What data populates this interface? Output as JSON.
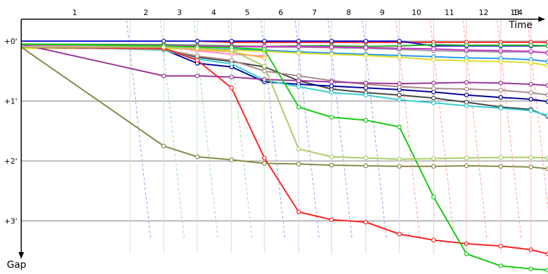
{
  "chart_data": {
    "type": "line",
    "xlabel": "Time",
    "ylabel": "Gap",
    "x_ticks": [
      "1",
      "2",
      "3",
      "4",
      "5",
      "6",
      "7",
      "8",
      "9",
      "10",
      "11",
      "12",
      "13",
      "14"
    ],
    "y_ticks": [
      "+0'",
      "+1'",
      "+2'",
      "+3'"
    ],
    "y_range_minutes": [
      -0.35,
      3.8
    ],
    "grid": true,
    "series": [
      {
        "color": "#ff2020",
        "points": [
          [
            0,
            0
          ],
          [
            2,
            0
          ],
          [
            3,
            0
          ],
          [
            4,
            0.02
          ],
          [
            5,
            0.02
          ],
          [
            6,
            0.02
          ],
          [
            7,
            0.02
          ],
          [
            8,
            0.02
          ],
          [
            9,
            0.02
          ],
          [
            10,
            0.02
          ],
          [
            11,
            0.02
          ],
          [
            12,
            0.02
          ],
          [
            13,
            0.02
          ],
          [
            14,
            0.02
          ]
        ]
      },
      {
        "color": "#1515d0",
        "points": [
          [
            0,
            0
          ],
          [
            2,
            0
          ],
          [
            3,
            0
          ],
          [
            4,
            0
          ],
          [
            5,
            0
          ],
          [
            6,
            0
          ],
          [
            7,
            0
          ],
          [
            8,
            0
          ],
          [
            9,
            0
          ],
          [
            10,
            0.08
          ],
          [
            11,
            0.08
          ],
          [
            12,
            0.08
          ],
          [
            13,
            0.08
          ],
          [
            14,
            0.08
          ]
        ]
      },
      {
        "color": "#22aa22",
        "points": [
          [
            0,
            0.05
          ],
          [
            2,
            0.06
          ],
          [
            3,
            0.07
          ],
          [
            4,
            0.08
          ],
          [
            5,
            0.09
          ],
          [
            6,
            0.08
          ],
          [
            7,
            0.08
          ],
          [
            8,
            0.09
          ],
          [
            9,
            0.08
          ],
          [
            10,
            0.06
          ],
          [
            11,
            0.07
          ],
          [
            12,
            0.07
          ],
          [
            13,
            0.07
          ],
          [
            14,
            0.08
          ]
        ]
      },
      {
        "color": "#999999",
        "points": [
          [
            0,
            0.08
          ],
          [
            2,
            0.08
          ],
          [
            3,
            0.09
          ],
          [
            4,
            0.09
          ],
          [
            5,
            0.1
          ],
          [
            6,
            0.1
          ],
          [
            7,
            0.11
          ],
          [
            8,
            0.12
          ],
          [
            9,
            0.14
          ],
          [
            10,
            0.16
          ],
          [
            11,
            0.17
          ],
          [
            12,
            0.18
          ],
          [
            13,
            0.18
          ],
          [
            14,
            0.19
          ]
        ]
      },
      {
        "color": "#cc33cc",
        "points": [
          [
            0,
            0.06
          ],
          [
            2,
            0.07
          ],
          [
            3,
            0.08
          ],
          [
            4,
            0.09
          ],
          [
            5,
            0.09
          ],
          [
            6,
            0.09
          ],
          [
            7,
            0.1
          ],
          [
            8,
            0.11
          ],
          [
            9,
            0.12
          ],
          [
            10,
            0.13
          ],
          [
            11,
            0.15
          ],
          [
            12,
            0.16
          ],
          [
            13,
            0.17
          ],
          [
            14,
            0.2
          ]
        ]
      },
      {
        "color": "#2299ee",
        "points": [
          [
            0,
            0.1
          ],
          [
            2,
            0.11
          ],
          [
            3,
            0.12
          ],
          [
            4,
            0.14
          ],
          [
            5,
            0.15
          ],
          [
            6,
            0.18
          ],
          [
            7,
            0.2
          ],
          [
            8,
            0.22
          ],
          [
            9,
            0.24
          ],
          [
            10,
            0.26
          ],
          [
            11,
            0.28
          ],
          [
            12,
            0.29
          ],
          [
            13,
            0.31
          ],
          [
            14,
            0.34
          ]
        ]
      },
      {
        "color": "#dddd22",
        "points": [
          [
            0,
            0.12
          ],
          [
            2,
            0.12
          ],
          [
            3,
            0.14
          ],
          [
            4,
            0.15
          ],
          [
            5,
            0.17
          ],
          [
            6,
            0.2
          ],
          [
            7,
            0.22
          ],
          [
            8,
            0.24
          ],
          [
            9,
            0.27
          ],
          [
            10,
            0.31
          ],
          [
            11,
            0.33
          ],
          [
            12,
            0.34
          ],
          [
            13,
            0.36
          ],
          [
            14,
            0.41
          ]
        ]
      },
      {
        "color": "#444444",
        "points": [
          [
            0,
            0.1
          ],
          [
            2,
            0.13
          ],
          [
            3,
            0.27
          ],
          [
            4,
            0.34
          ],
          [
            5,
            0.43
          ],
          [
            6,
            0.66
          ],
          [
            7,
            0.8
          ],
          [
            8,
            0.86
          ],
          [
            9,
            0.9
          ],
          [
            10,
            0.95
          ],
          [
            11,
            1.02
          ],
          [
            12,
            1.1
          ],
          [
            13,
            1.14
          ],
          [
            14,
            1.26
          ]
        ]
      },
      {
        "color": "#000099",
        "points": [
          [
            0,
            0.1
          ],
          [
            2,
            0.14
          ],
          [
            3,
            0.37
          ],
          [
            4,
            0.43
          ],
          [
            5,
            0.68
          ],
          [
            6,
            0.72
          ],
          [
            7,
            0.75
          ],
          [
            8,
            0.78
          ],
          [
            9,
            0.81
          ],
          [
            10,
            0.85
          ],
          [
            11,
            0.9
          ],
          [
            12,
            0.94
          ],
          [
            13,
            0.97
          ],
          [
            14,
            1.01
          ]
        ]
      },
      {
        "color": "#33cccc",
        "points": [
          [
            0,
            0.08
          ],
          [
            2,
            0.15
          ],
          [
            3,
            0.3
          ],
          [
            4,
            0.38
          ],
          [
            5,
            0.65
          ],
          [
            6,
            0.76
          ],
          [
            7,
            0.86
          ],
          [
            8,
            0.9
          ],
          [
            9,
            0.98
          ],
          [
            10,
            1.03
          ],
          [
            11,
            1.08
          ],
          [
            12,
            1.12
          ],
          [
            13,
            1.16
          ],
          [
            14,
            1.24
          ]
        ]
      },
      {
        "color": "#aa8888",
        "points": [
          [
            0,
            0.1
          ],
          [
            2,
            0.14
          ],
          [
            3,
            0.25
          ],
          [
            4,
            0.32
          ],
          [
            5,
            0.5
          ],
          [
            6,
            0.58
          ],
          [
            7,
            0.66
          ],
          [
            8,
            0.72
          ],
          [
            9,
            0.76
          ],
          [
            10,
            0.79
          ],
          [
            11,
            0.8
          ],
          [
            12,
            0.82
          ],
          [
            13,
            0.86
          ],
          [
            14,
            0.9
          ]
        ]
      },
      {
        "color": "#993399",
        "points": [
          [
            0,
            0.05
          ],
          [
            2,
            0.58
          ],
          [
            3,
            0.58
          ],
          [
            4,
            0.6
          ],
          [
            5,
            0.64
          ],
          [
            6,
            0.66
          ],
          [
            7,
            0.68
          ],
          [
            8,
            0.7
          ],
          [
            9,
            0.71
          ],
          [
            10,
            0.7
          ],
          [
            11,
            0.69
          ],
          [
            12,
            0.7
          ],
          [
            13,
            0.72
          ],
          [
            14,
            0.74
          ]
        ]
      },
      {
        "color": "#ff88cc",
        "points": [
          [
            0,
            0.09
          ],
          [
            2,
            0.08
          ],
          [
            3,
            0.16
          ],
          [
            4,
            0.22
          ],
          [
            5,
            0.25
          ]
        ]
      },
      {
        "color": "#ffbb33",
        "points": [
          [
            2,
            0.08
          ],
          [
            3,
            0.14
          ],
          [
            4,
            0.18
          ],
          [
            5,
            0.28
          ]
        ]
      },
      {
        "color": "#ff2020",
        "points": [
          [
            0,
            0.1
          ],
          [
            2,
            0.12
          ],
          [
            3,
            0.32
          ],
          [
            4,
            0.78
          ],
          [
            5,
            1.95
          ],
          [
            6,
            2.85
          ],
          [
            7,
            2.98
          ],
          [
            8,
            3.02
          ],
          [
            9,
            3.22
          ],
          [
            10,
            3.32
          ],
          [
            11,
            3.38
          ],
          [
            12,
            3.42
          ],
          [
            13,
            3.48
          ],
          [
            14,
            3.55
          ]
        ]
      },
      {
        "color": "#11cc11",
        "points": [
          [
            0,
            0.05
          ],
          [
            2,
            0.08
          ],
          [
            3,
            0.1
          ],
          [
            4,
            0.11
          ],
          [
            5,
            0.14
          ],
          [
            6,
            1.1
          ],
          [
            7,
            1.27
          ],
          [
            8,
            1.32
          ],
          [
            9,
            1.43
          ],
          [
            10,
            2.6
          ],
          [
            11,
            3.55
          ],
          [
            12,
            3.75
          ],
          [
            13,
            3.8
          ],
          [
            14,
            3.82
          ]
        ]
      },
      {
        "color": "#aacc66",
        "points": [
          [
            0,
            0.1
          ],
          [
            2,
            0.1
          ],
          [
            3,
            0.12
          ],
          [
            4,
            0.15
          ],
          [
            5,
            0.42
          ],
          [
            6,
            1.8
          ],
          [
            7,
            1.93
          ],
          [
            8,
            1.95
          ],
          [
            9,
            1.97
          ],
          [
            10,
            1.96
          ],
          [
            11,
            1.95
          ],
          [
            12,
            1.94
          ],
          [
            13,
            1.94
          ],
          [
            14,
            1.95
          ]
        ]
      },
      {
        "color": "#888844",
        "points": [
          [
            0,
            0.1
          ],
          [
            2,
            1.75
          ],
          [
            3,
            1.93
          ],
          [
            4,
            1.98
          ],
          [
            5,
            2.04
          ],
          [
            6,
            2.05
          ],
          [
            7,
            2.07
          ],
          [
            8,
            2.08
          ],
          [
            9,
            2.09
          ],
          [
            10,
            2.09
          ],
          [
            11,
            2.08
          ],
          [
            12,
            2.09
          ],
          [
            13,
            2.1
          ],
          [
            14,
            2.13
          ]
        ]
      }
    ]
  }
}
